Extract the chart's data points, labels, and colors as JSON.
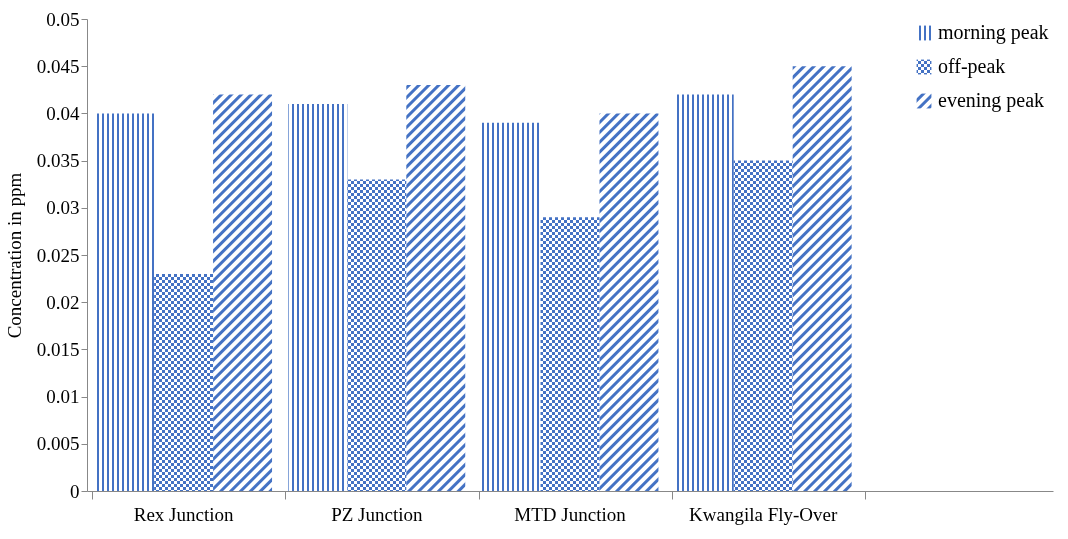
{
  "chart_data": {
    "type": "bar",
    "ylabel": "Concentration in ppm",
    "categories": [
      "Rex Junction",
      "PZ Junction",
      "MTD Junction",
      "Kwangila Fly-Over",
      null
    ],
    "series": [
      {
        "name": "morning peak",
        "color": "#4472c4",
        "values": [
          0.04,
          0.041,
          0.039,
          0.042,
          null
        ]
      },
      {
        "name": "off-peak",
        "color": "#4472c4",
        "values": [
          0.023,
          0.033,
          0.029,
          0.035,
          null
        ]
      },
      {
        "name": "evening peak",
        "color": "#4472c4",
        "values": [
          0.042,
          0.043,
          0.04,
          0.045,
          null
        ]
      }
    ],
    "ylim": [
      0,
      0.05
    ],
    "yticks": [
      0,
      0.005,
      0.01,
      0.015,
      0.02,
      0.025,
      0.03,
      0.035,
      0.04,
      0.045,
      0.05
    ],
    "grid": false,
    "legend": "top right"
  }
}
